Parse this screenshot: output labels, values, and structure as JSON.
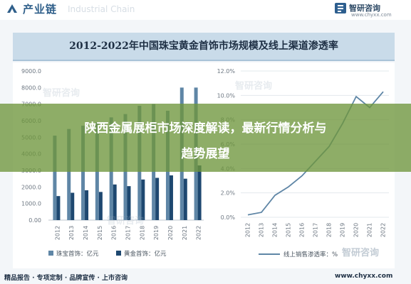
{
  "header": {
    "section_title": "产业链",
    "watermark_text": "Industrial Chain",
    "brand_name": "智研咨询",
    "brand_url": "www.chyxx.com"
  },
  "chart_title": "2012-2022年中国珠宝黄金首饰市场规模及线上渠道渗透率",
  "overlay": {
    "line1": "陕西金属展柜市场深度解读，最新行情分析与",
    "line2": "趋势展望"
  },
  "footer": {
    "left": "精品报告 · 专项定制 · 品牌宣传 · 上市咨询",
    "right": "www.chyxx.com"
  },
  "watermarks": [
    "智研咨询",
    "智研咨询",
    "智研咨询",
    "智研咨询"
  ],
  "colors": {
    "jewelry_bar": "#5f86a6",
    "gold_bar": "#1e4870",
    "line": "#5f86a6",
    "overlay": "#7a9a45"
  },
  "chart_data": [
    {
      "type": "bar",
      "categories": [
        "2012",
        "2013",
        "2014",
        "2015",
        "2016",
        "2017",
        "2018",
        "2019",
        "2020",
        "2021",
        "2022"
      ],
      "series": [
        {
          "name": "珠宝首饰：亿元",
          "values": [
            5100,
            5500,
            5700,
            5900,
            6200,
            6400,
            6900,
            7000,
            6600,
            8000,
            8000
          ]
        },
        {
          "name": "黄金首饰：亿元",
          "values": [
            1450,
            1650,
            1800,
            1700,
            2150,
            2050,
            2450,
            2550,
            2700,
            2500,
            3300
          ]
        }
      ],
      "ylim": [
        0,
        9000
      ],
      "yticks": [
        "0.00",
        "1000.0",
        "2000.0",
        "3000.0",
        "4000.0",
        "5000.0",
        "6000.0",
        "7000.0",
        "8000.0",
        "9000.0"
      ],
      "legend": "bottom"
    },
    {
      "type": "line",
      "x": [
        "2012",
        "2013",
        "2014",
        "2015",
        "2016",
        "2017",
        "2018",
        "2019",
        "2020",
        "2021",
        "2022"
      ],
      "series": [
        {
          "name": "线上销售渗透率：%",
          "values": [
            0.2,
            0.4,
            1.8,
            2.5,
            3.4,
            4.6,
            5.8,
            7.7,
            9.9,
            9.0,
            10.3
          ]
        }
      ],
      "ylim": [
        0,
        12
      ],
      "yticks": [
        "0.0%",
        "2.0%",
        "4.0%",
        "6.0%",
        "8.0%",
        "10.0%",
        "12.0%"
      ],
      "legend": "bottom"
    }
  ]
}
